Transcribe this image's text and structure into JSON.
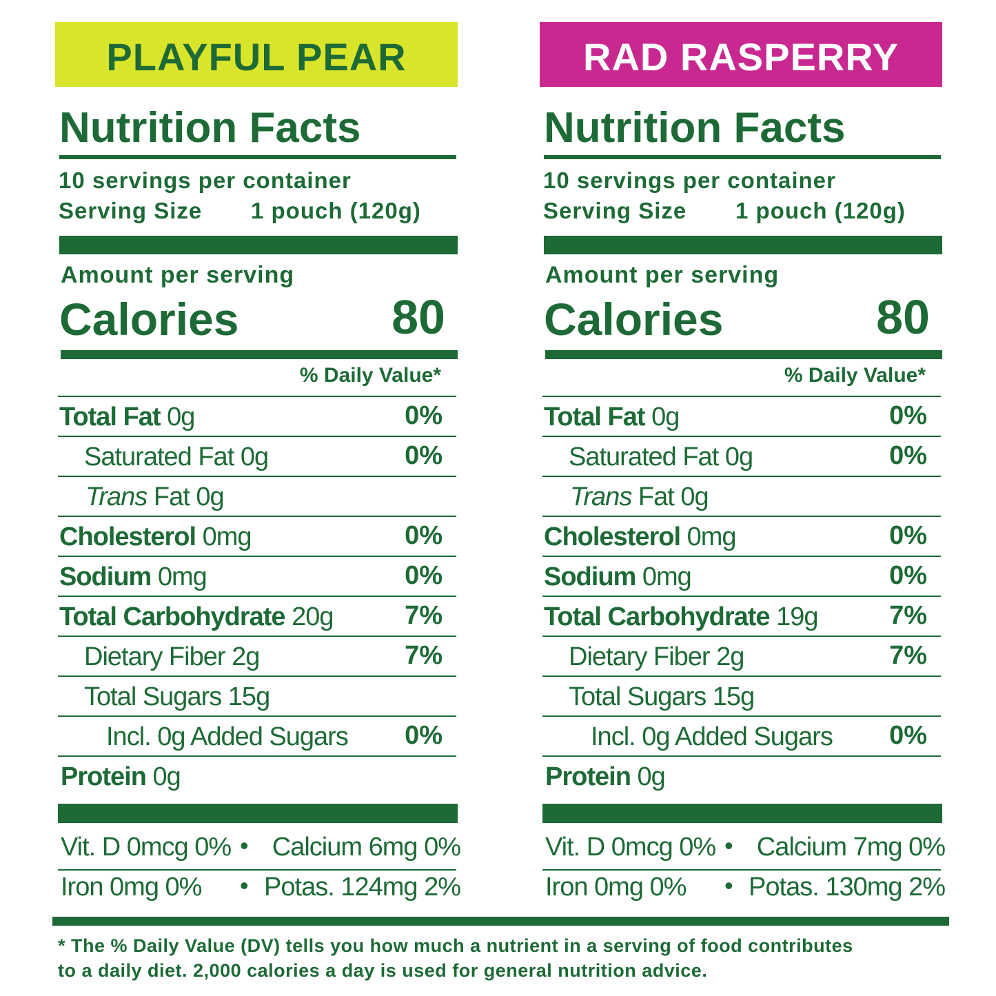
{
  "panels": [
    {
      "flavor": "PLAYFUL PEAR",
      "title": "Nutrition Facts",
      "servings": "10 servings per container",
      "serving_size_label": "Serving Size",
      "serving_size": "1 pouch (120g)",
      "amount_per_serving": "Amount per serving",
      "calories_label": "Calories",
      "calories": "80",
      "dv_header": "% Daily Value*",
      "rows": [
        {
          "name": "Total Fat",
          "amount": "0g",
          "dv": "0%"
        },
        {
          "name": "Saturated Fat",
          "amount": "0g",
          "dv": "0%"
        },
        {
          "name_italic": "Trans",
          "name": "Fat",
          "amount": "0g"
        },
        {
          "name": "Cholesterol",
          "amount": "0mg",
          "dv": "0%"
        },
        {
          "name": "Sodium",
          "amount": "0mg",
          "dv": "0%"
        },
        {
          "name": "Total Carbohydrate",
          "amount": "20g",
          "dv": "7%"
        },
        {
          "name": "Dietary Fiber",
          "amount": "2g",
          "dv": "7%"
        },
        {
          "name": "Total Sugars",
          "amount": "15g"
        },
        {
          "name": "Incl. 0g Added Sugars",
          "dv": "0%"
        },
        {
          "name": "Protein",
          "amount": "0g"
        }
      ],
      "vitamins": [
        [
          "Vit. D 0mcg 0%",
          "Calcium 6mg 0%"
        ],
        [
          "Iron 0mg 0%",
          "Potas. 124mg 2%"
        ]
      ]
    },
    {
      "flavor": "RAD RASPERRY",
      "title": "Nutrition Facts",
      "servings": "10 servings per container",
      "serving_size_label": "Serving Size",
      "serving_size": "1 pouch (120g)",
      "amount_per_serving": "Amount per serving",
      "calories_label": "Calories",
      "calories": "80",
      "dv_header": "% Daily Value*",
      "rows": [
        {
          "name": "Total Fat",
          "amount": "0g",
          "dv": "0%"
        },
        {
          "name": "Saturated Fat",
          "amount": "0g",
          "dv": "0%"
        },
        {
          "name_italic": "Trans",
          "name": "Fat",
          "amount": "0g"
        },
        {
          "name": "Cholesterol",
          "amount": "0mg",
          "dv": "0%"
        },
        {
          "name": "Sodium",
          "amount": "0mg",
          "dv": "0%"
        },
        {
          "name": "Total Carbohydrate",
          "amount": "19g",
          "dv": "7%"
        },
        {
          "name": "Dietary Fiber",
          "amount": "2g",
          "dv": "7%"
        },
        {
          "name": "Total Sugars",
          "amount": "15g"
        },
        {
          "name": "Incl. 0g Added Sugars",
          "dv": "0%"
        },
        {
          "name": "Protein",
          "amount": "0g"
        }
      ],
      "vitamins": [
        [
          "Vit. D 0mcg 0%",
          "Calcium 7mg 0%"
        ],
        [
          "Iron 0mg 0%",
          "Potas. 130mg 2%"
        ]
      ]
    }
  ],
  "footnote": [
    "* The % Daily Value (DV) tells you how much a nutrient in a serving of food contributes",
    "to a daily diet. 2,000 calories a day is used for general nutrition advice."
  ]
}
